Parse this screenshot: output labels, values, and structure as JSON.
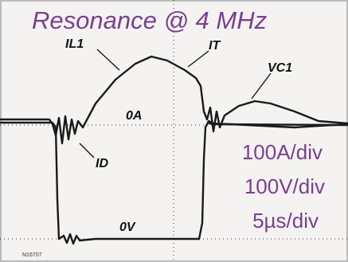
{
  "title": "Resonance @ 4 MHz",
  "traces": [
    {
      "label": "IL1"
    },
    {
      "label": "IT"
    },
    {
      "label": "VC1"
    },
    {
      "label": "ID"
    }
  ],
  "levels": [
    {
      "label": "0A"
    },
    {
      "label": "0V"
    }
  ],
  "scales": [
    "100A/div",
    "100V/div",
    "5µs/div"
  ],
  "footer": "N16707"
}
